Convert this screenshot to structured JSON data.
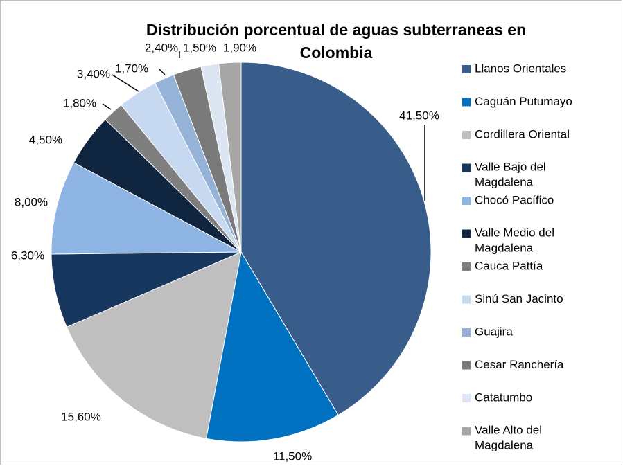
{
  "chart_data": {
    "type": "pie",
    "title": "Distribución porcentual de aguas subterraneas en Colombia",
    "categories": [
      "Llanos Orientales",
      "Caguán Putumayo",
      "Cordillera Oriental",
      "Valle Bajo del Magdalena",
      "Chocó Pacífico",
      "Valle Medio del Magdalena",
      "Cauca Pattía",
      "Sinú San Jacinto",
      "Guajira",
      "Cesar Ranchería",
      "Catatumbo",
      "Valle Alto del Magdalena"
    ],
    "values": [
      41.5,
      11.5,
      15.6,
      6.3,
      8.0,
      4.5,
      1.8,
      3.4,
      1.7,
      2.4,
      1.5,
      1.9
    ],
    "value_labels": [
      "41,50%",
      "11,50%",
      "15,60%",
      "6,30%",
      "8,00%",
      "4,50%",
      "1,80%",
      "3,40%",
      "1,70%",
      "2,40%",
      "1,50%",
      "1,90%"
    ],
    "colors": [
      "#385D8A",
      "#0070C0",
      "#BFBFBF",
      "#17375E",
      "#8EB4E3",
      "#10253F",
      "#7F7F7F",
      "#C6D9F1",
      "#95B3D7",
      "#7A7A7A",
      "#DCE6F2",
      "#A6A6A6"
    ],
    "legend": "right"
  }
}
